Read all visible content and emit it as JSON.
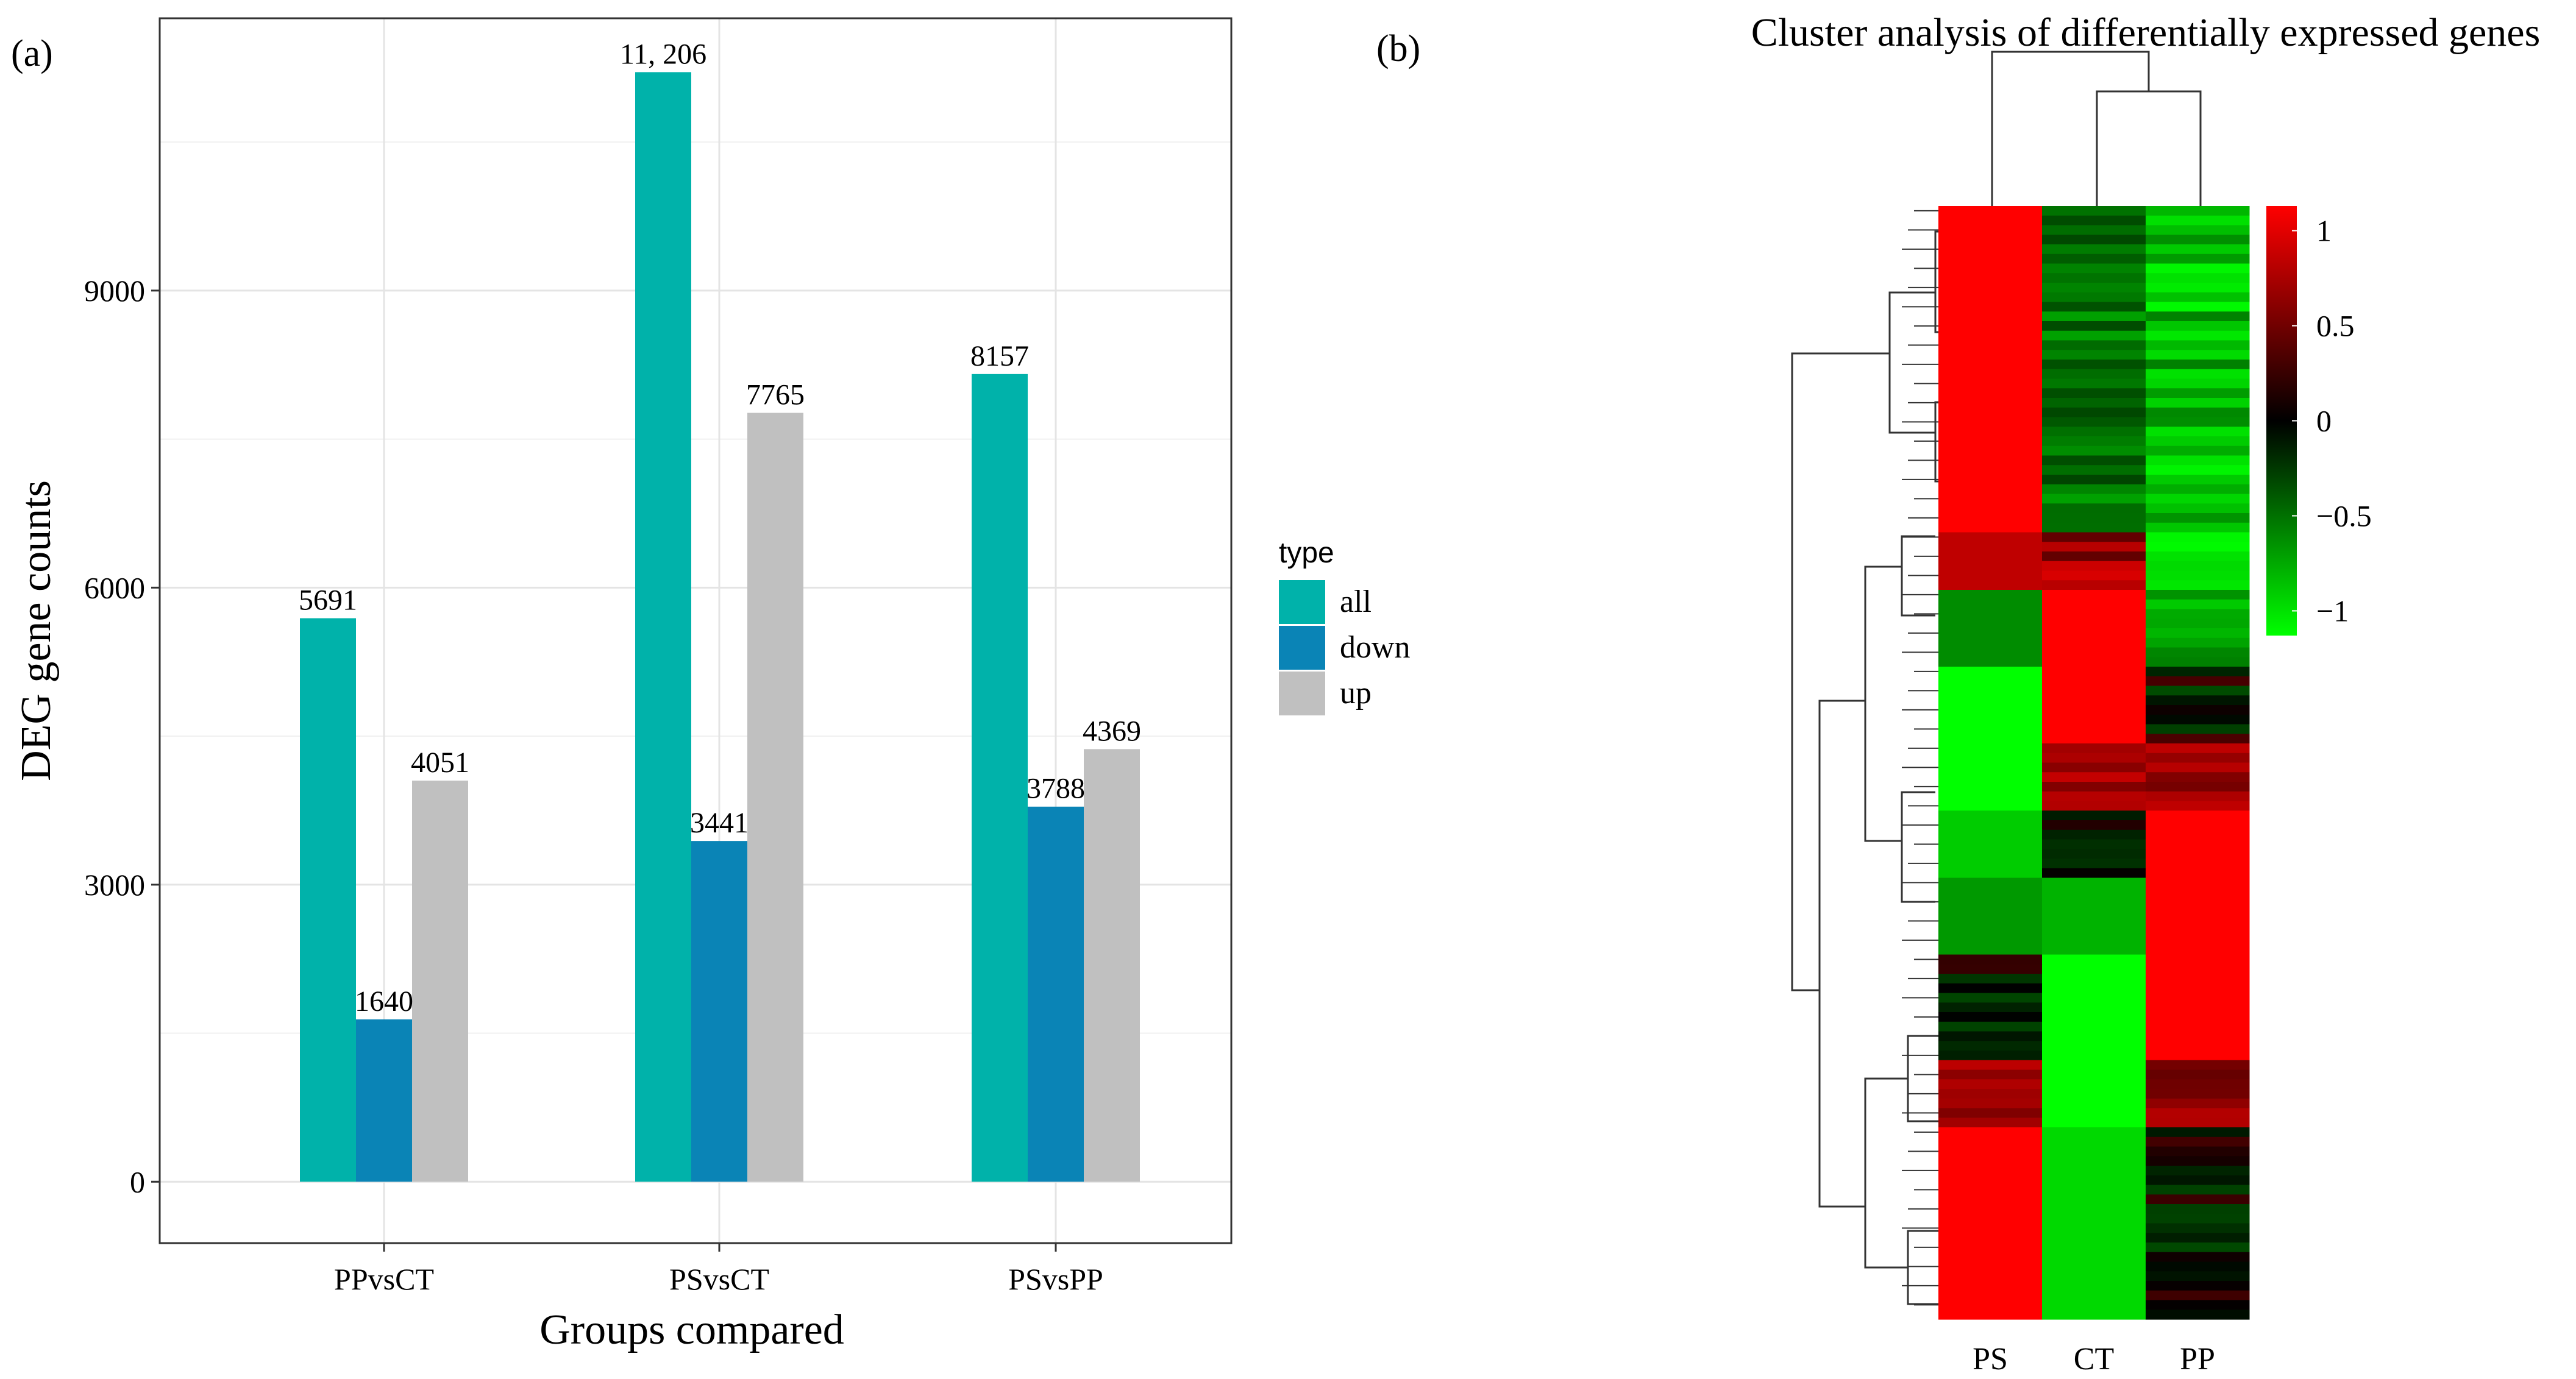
{
  "panel_a": {
    "label": "(a)",
    "legend_title": "type",
    "chart_data": {
      "type": "bar",
      "categories": [
        "PPvsCT",
        "PSvsCT",
        "PSvsPP"
      ],
      "series": [
        {
          "name": "all",
          "color": "#00b2aa",
          "values": [
            5691,
            11206,
            8157
          ]
        },
        {
          "name": "down",
          "color": "#0a84b6",
          "values": [
            1640,
            3441,
            3788
          ]
        },
        {
          "name": "up",
          "color": "#c0c0c0",
          "values": [
            4051,
            7765,
            4369
          ]
        }
      ],
      "data_labels": [
        [
          "5691",
          "11, 206",
          "8157"
        ],
        [
          "1640",
          "3441",
          "3788"
        ],
        [
          "4051",
          "7765",
          "4369"
        ]
      ],
      "title": "",
      "xlabel": "Groups compared",
      "ylabel": "DEG gene counts",
      "ylim": [
        -620,
        11750
      ],
      "yticks": [
        0,
        3000,
        6000,
        9000
      ],
      "ytick_labels": [
        "0",
        "3000",
        "6000",
        "9000"
      ],
      "grid": true
    }
  },
  "panel_b": {
    "label": "(b)",
    "chart_data": {
      "type": "heatmap",
      "title": "Cluster analysis of differentially expressed genes",
      "columns": [
        "PS",
        "CT",
        "PP"
      ],
      "column_order_note": "dendrogram joins CT and PP first, then PS",
      "colorbar": {
        "ticks": [
          1,
          0.5,
          0,
          -0.5,
          -1
        ],
        "tick_labels": [
          "1",
          "0.5",
          "0",
          "−0.5",
          "−1"
        ],
        "colors": {
          "high": "#ff0000",
          "mid": "#000000",
          "low": "#00ff00"
        }
      },
      "row_blocks": [
        {
          "rows": 34,
          "PS": 1.0,
          "CT": [
            -0.25,
            -0.65
          ],
          "PP": [
            -1.0,
            -0.5
          ]
        },
        {
          "rows": 6,
          "PS": 0.75,
          "CT": [
            0.2,
            0.9
          ],
          "PP": [
            -1.0,
            -0.85
          ]
        },
        {
          "rows": 8,
          "PS": -0.55,
          "CT": 1.0,
          "PP": [
            -0.8,
            -0.4
          ]
        },
        {
          "rows": 8,
          "PS": -1.0,
          "CT": 1.0,
          "PP": [
            -0.3,
            0.3
          ]
        },
        {
          "rows": 7,
          "PS": -1.0,
          "CT": [
            0.5,
            0.8
          ],
          "PP": [
            0.4,
            0.8
          ]
        },
        {
          "rows": 7,
          "PS": -0.8,
          "CT": [
            -0.2,
            0.2
          ],
          "PP": 1.0
        },
        {
          "rows": 8,
          "PS": -0.6,
          "CT": -0.7,
          "PP": 1.0
        },
        {
          "rows": 11,
          "PS": [
            -0.3,
            0.3
          ],
          "CT": -1.0,
          "PP": 1.0
        },
        {
          "rows": 7,
          "PS": [
            0.5,
            0.8
          ],
          "CT": -1.0,
          "PP": [
            0.4,
            0.8
          ]
        },
        {
          "rows": 20,
          "PS": 1.0,
          "CT": -0.85,
          "PP": [
            -0.3,
            0.3
          ]
        }
      ]
    }
  }
}
